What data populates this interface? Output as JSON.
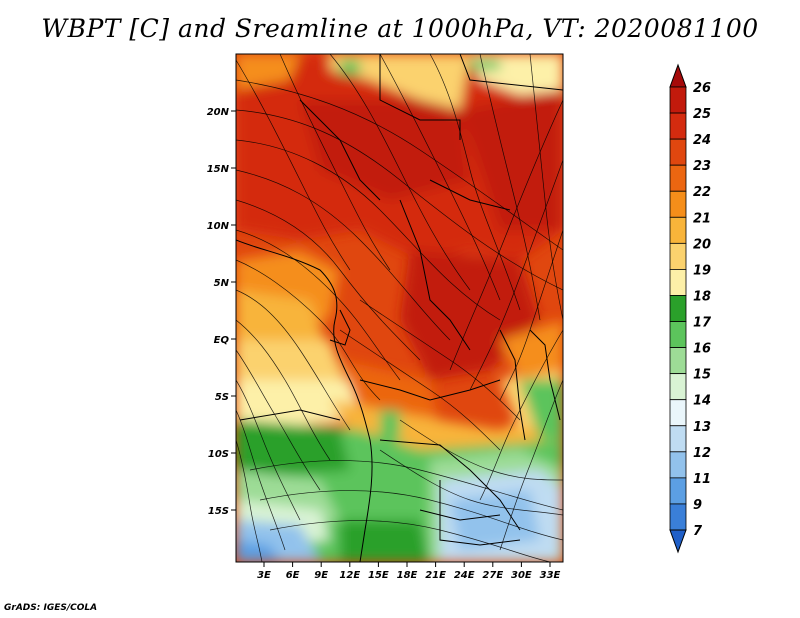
{
  "title": "WBPT [C] and Sreamline at 1000hPa, VT: 2020081100",
  "lat_labels": [
    "20N",
    "15N",
    "10N",
    "5N",
    "EQ",
    "5S",
    "10S",
    "15S"
  ],
  "lon_labels": [
    "3E",
    "6E",
    "9E",
    "12E",
    "15E",
    "18E",
    "21E",
    "24E",
    "27E",
    "30E",
    "33E"
  ],
  "colorbar": {
    "levels": [
      "26",
      "25",
      "24",
      "23",
      "22",
      "21",
      "20",
      "19",
      "18",
      "17",
      "16",
      "15",
      "14",
      "13",
      "12",
      "11",
      "9",
      "7"
    ],
    "colors": [
      "#a50a0a",
      "#c21a0c",
      "#d42b0f",
      "#e0470f",
      "#ec6611",
      "#f58e1a",
      "#f8b43a",
      "#fbd26e",
      "#fdf0a8",
      "#2aa02a",
      "#5cc45c",
      "#9ddc96",
      "#d9f3d4",
      "#eaf6fb",
      "#bfdcf2",
      "#92c2ec",
      "#5c9fe3",
      "#3a7fd8",
      "#1f5fc8"
    ]
  },
  "credit": "GrADS: IGES/COLA"
}
